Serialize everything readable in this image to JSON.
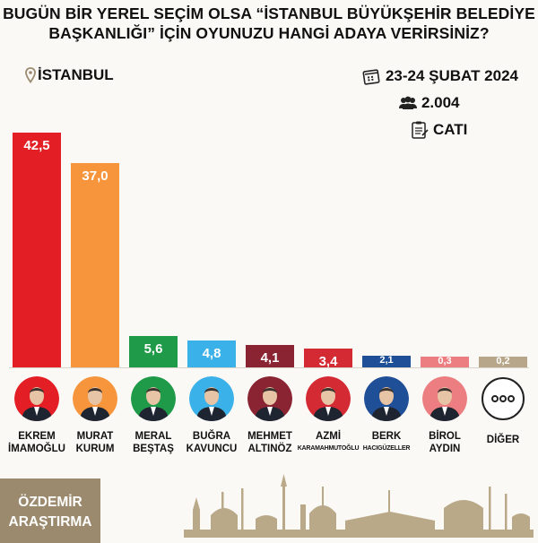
{
  "title": {
    "line1": "BUGÜN BİR YEREL SEÇİM OLSA “İSTANBUL BÜYÜKŞEHİR BELEDİYE",
    "line2": "BAŞKANLIĞI” İÇİN OYUNUZU HANGİ ADAYA VERİRSİNİZ?"
  },
  "location": "İSTANBUL",
  "meta": {
    "date": "23-24 ŞUBAT 2024",
    "sample": "2.004",
    "method": "CATI"
  },
  "brand": {
    "line1": "ÖZDEMİR",
    "line2": "ARAŞTIRMA"
  },
  "icons": {
    "location": "pin-icon",
    "date": "calendar-icon",
    "sample": "people-icon",
    "method": "clipboard-icon"
  },
  "colors": {
    "accent": "#9b8a6d"
  },
  "chart_data": {
    "type": "bar",
    "categories": [
      "EKREM İMAMOĞLU",
      "MURAT KURUM",
      "MERAL BEŞTAŞ",
      "BUĞRA KAVUNCU",
      "MEHMET ALTINÖZ",
      "AZMİ KARAMAHMUTOĞLU",
      "BERK HACIGÜZELLER",
      "BİROL AYDIN",
      "DİĞER"
    ],
    "values": [
      42.5,
      37.0,
      5.6,
      4.8,
      4.1,
      3.4,
      2.1,
      0.3,
      0.2
    ],
    "labels": [
      "42,5",
      "37,0",
      "5,6",
      "4,8",
      "4,1",
      "3,4",
      "2,1",
      "0,3",
      "0,2"
    ],
    "colors": [
      "#e31e24",
      "#f7953d",
      "#1f9a48",
      "#3ab1e8",
      "#8a2433",
      "#d42a33",
      "#1f4f96",
      "#ec7d80",
      "#b7a68a"
    ],
    "ylim": [
      0,
      42.5
    ],
    "candidates": [
      {
        "first": "EKREM",
        "last": "İMAMOĞLU",
        "avatar_bg": "#e31e24"
      },
      {
        "first": "MURAT",
        "last": "KURUM",
        "avatar_bg": "#f7953d"
      },
      {
        "first": "MERAL",
        "last": "BEŞTAŞ",
        "avatar_bg": "#1f9a48"
      },
      {
        "first": "BUĞRA",
        "last": "KAVUNCU",
        "avatar_bg": "#3ab1e8"
      },
      {
        "first": "MEHMET",
        "last": "ALTINÖZ",
        "avatar_bg": "#8a2433"
      },
      {
        "first": "AZMİ",
        "last": "KARAMAHMUTOĞLU",
        "avatar_bg": "#d42a33"
      },
      {
        "first": "BERK",
        "last": "HACIGÜZELLER",
        "avatar_bg": "#1f4f96"
      },
      {
        "first": "BİROL",
        "last": "AYDIN",
        "avatar_bg": "#ec7d80"
      },
      {
        "first": "DİĞER",
        "last": "",
        "avatar_bg": "#ffffff"
      }
    ]
  }
}
